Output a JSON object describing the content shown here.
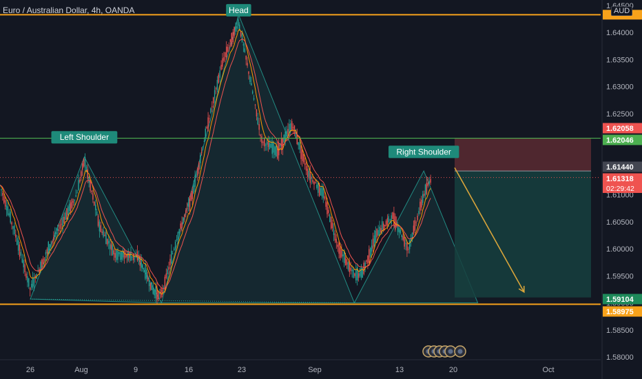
{
  "header": {
    "symbol_title": "Euro / Australian Dollar, 4h, OANDA",
    "currency": "AUD"
  },
  "colors": {
    "background": "#131722",
    "up_candle": "#26a69a",
    "down_candle": "#ef5350",
    "pattern_fill": "#26a69a",
    "horizontal_line_orange": "#f7a21b",
    "neckline_green": "#4caf50",
    "label_teal": "#1e8a7a",
    "arrow": "#d9a53a",
    "stop_zone": "#5a2a31",
    "target_zone": "#16403e",
    "ema_red": "#ef5350",
    "ema_orange": "#ff9800"
  },
  "chart_data": {
    "type": "candlestick",
    "title": "Euro / Australian Dollar, 4h, OANDA",
    "ylim": [
      1.58,
      1.645
    ],
    "y_axis_ticks": [
      "1.64500",
      "1.64000",
      "1.63500",
      "1.63000",
      "1.62500",
      "1.62000",
      "1.61500",
      "1.61000",
      "1.60500",
      "1.60000",
      "1.59500",
      "1.59000",
      "1.58500",
      "1.58000"
    ],
    "x_axis_ticks": [
      "26",
      "Aug",
      "9",
      "16",
      "23",
      "Sep",
      "13",
      "20",
      "Oct"
    ],
    "price_path_anchors": [
      {
        "x": "Jul 22",
        "y": 1.612
      },
      {
        "x": "Jul 24",
        "y": 1.603
      },
      {
        "x": "Jul 26",
        "y": 1.5925
      },
      {
        "x": "Jul 28",
        "y": 1.599
      },
      {
        "x": "Aug 1",
        "y": 1.61
      },
      {
        "x": "Aug 2",
        "y": 1.6165
      },
      {
        "x": "Aug 4",
        "y": 1.604
      },
      {
        "x": "Aug 6",
        "y": 1.599
      },
      {
        "x": "Aug 9",
        "y": 1.5985
      },
      {
        "x": "Aug 11",
        "y": 1.592
      },
      {
        "x": "Aug 12",
        "y": 1.5915
      },
      {
        "x": "Aug 14",
        "y": 1.602
      },
      {
        "x": "Aug 16",
        "y": 1.61
      },
      {
        "x": "Aug 18",
        "y": 1.623
      },
      {
        "x": "Aug 20",
        "y": 1.635
      },
      {
        "x": "Aug 22",
        "y": 1.642
      },
      {
        "x": "Aug 23",
        "y": 1.635
      },
      {
        "x": "Aug 25",
        "y": 1.62
      },
      {
        "x": "Aug 27",
        "y": 1.618
      },
      {
        "x": "Aug 29",
        "y": 1.623
      },
      {
        "x": "Aug 31",
        "y": 1.614
      },
      {
        "x": "Sep 2",
        "y": 1.61
      },
      {
        "x": "Sep 4",
        "y": 1.6
      },
      {
        "x": "Sep 6",
        "y": 1.595
      },
      {
        "x": "Sep 7",
        "y": 1.5955
      },
      {
        "x": "Sep 9",
        "y": 1.603
      },
      {
        "x": "Sep 11",
        "y": 1.606
      },
      {
        "x": "Sep 13",
        "y": 1.6
      },
      {
        "x": "Sep 15",
        "y": 1.61
      },
      {
        "x": "Sep 16",
        "y": 1.6132
      }
    ],
    "levels": [
      {
        "name": "head-level",
        "value": 1.6433
      },
      {
        "name": "neckline",
        "value": 1.62046
      },
      {
        "name": "entry",
        "value": 1.6144
      },
      {
        "name": "current",
        "value": 1.61318
      },
      {
        "name": "target",
        "value": 1.59104
      },
      {
        "name": "support",
        "value": 1.58975
      }
    ],
    "price_labels": [
      {
        "text": "1.62058",
        "value": 1.62058,
        "color": "#ef5350"
      },
      {
        "text": "1.62046",
        "value": 1.62046,
        "color": "#4caf50"
      },
      {
        "text": "1.61440",
        "value": 1.6144,
        "color": "#434651"
      },
      {
        "text": "1.61318",
        "value": 1.61318,
        "color": "#ef5350"
      },
      {
        "text": "1.59104",
        "value": 1.59104,
        "color": "#1e8a5a"
      },
      {
        "text": "1.58975",
        "value": 1.58975,
        "color": "#f7a21b"
      }
    ],
    "countdown": "02:29:42",
    "annotations": [
      {
        "text": "Left Shoulder",
        "x": "Aug 2",
        "y": 1.6205
      },
      {
        "text": "Head",
        "x": "Aug 22",
        "y": 1.644
      },
      {
        "text": "Right Shoulder",
        "x": "Sep 15",
        "y": 1.6178
      }
    ],
    "projection": {
      "from": "Sep 19",
      "from_value": 1.615,
      "to": "Sep 28",
      "to_value": 1.592
    }
  }
}
